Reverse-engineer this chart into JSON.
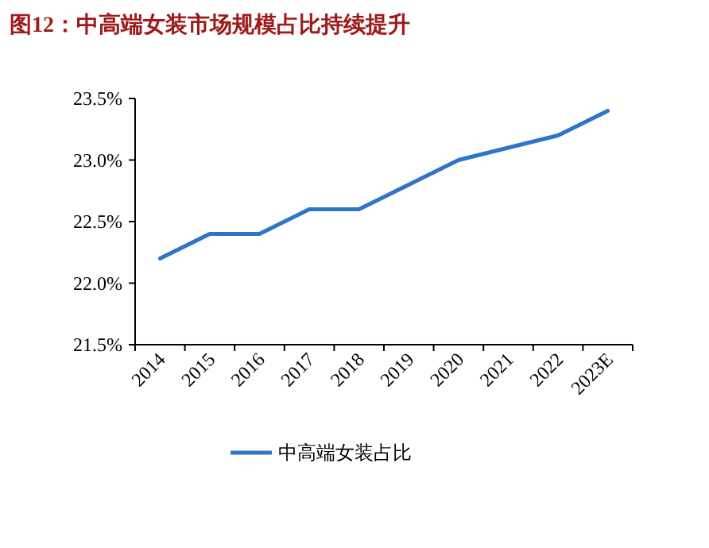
{
  "chart_data": {
    "type": "line",
    "title": "图12：中高端女装市场规模占比持续提升",
    "categories": [
      "2014",
      "2015",
      "2016",
      "2017",
      "2018",
      "2019",
      "2020",
      "2021",
      "2022",
      "2023E"
    ],
    "series": [
      {
        "name": "中高端女装占比",
        "color": "#2e75c6",
        "values": [
          22.2,
          22.4,
          22.4,
          22.6,
          22.6,
          22.8,
          23.0,
          23.1,
          23.2,
          23.4
        ]
      }
    ],
    "ylim": [
      21.5,
      23.5
    ],
    "yticks": [
      {
        "value": 21.5,
        "label": "21.5%"
      },
      {
        "value": 22.0,
        "label": "22.0%"
      },
      {
        "value": 22.5,
        "label": "22.5%"
      },
      {
        "value": 23.0,
        "label": "23.0%"
      },
      {
        "value": 23.5,
        "label": "23.5%"
      }
    ],
    "grid": false,
    "legend": "bottom",
    "marker": "none",
    "line_style": "solid"
  }
}
